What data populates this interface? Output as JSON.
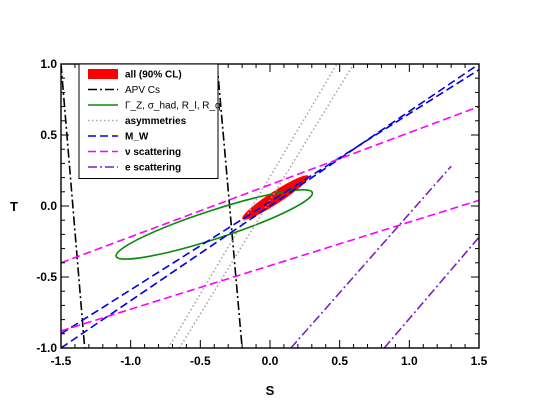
{
  "chart_data": {
    "type": "line",
    "xlabel": "S",
    "ylabel": "T",
    "xlim": [
      -1.5,
      1.5
    ],
    "ylim": [
      -1.0,
      1.0
    ],
    "x_ticks": [
      "-1.5",
      "-1.0",
      "-0.5",
      "0.0",
      "0.5",
      "1.0",
      "1.5"
    ],
    "y_ticks": [
      "-1.0",
      "-0.5",
      "0.0",
      "0.5",
      "1.0"
    ],
    "legend_position": "top-left",
    "legend": [
      {
        "label": "all (90% CL)",
        "color": "#ff0000",
        "style": "fill",
        "bold": true
      },
      {
        "label": "APV Cs",
        "color": "#000000",
        "style": "dashdot",
        "bold": false
      },
      {
        "label": "Γ_Z, σ_had, R_l, R_q",
        "color": "#0a8a0a",
        "style": "solid",
        "bold": false
      },
      {
        "label": "asymmetries",
        "color": "#b0a0a8",
        "style": "dotted",
        "bold": true
      },
      {
        "label": "M_W",
        "color": "#0000e0",
        "style": "dashed",
        "bold": true
      },
      {
        "label": "ν scattering",
        "color": "#ff00ff",
        "style": "dashed",
        "bold": true
      },
      {
        "label": "e scattering",
        "color": "#7a1fc4",
        "style": "dashdot",
        "bold": true
      }
    ],
    "series": [
      {
        "name": "all (90% CL)",
        "shape": "ellipse",
        "center": [
          0.04,
          0.06
        ],
        "semi_axes": [
          0.28,
          0.04
        ],
        "angle_deg": 33
      },
      {
        "name": "APV Cs",
        "bands": [
          [
            [
              -1.5,
              1.0
            ],
            [
              -1.33,
              -1.0
            ]
          ],
          [
            [
              -0.38,
              1.0
            ],
            [
              -0.2,
              -1.0
            ]
          ]
        ]
      },
      {
        "name": "Γ_Z, σ_had, R_l, R_q",
        "shape": "ellipse",
        "center": [
          -0.4,
          -0.13
        ],
        "semi_axes": [
          0.74,
          0.1
        ],
        "angle_deg": 18
      },
      {
        "name": "asymmetries",
        "bands": [
          [
            [
              -0.73,
              -1.0
            ],
            [
              0.48,
              1.0
            ]
          ],
          [
            [
              -0.65,
              -1.0
            ],
            [
              0.6,
              1.0
            ]
          ]
        ]
      },
      {
        "name": "M_W",
        "bands": [
          [
            [
              -1.5,
              -1.0
            ],
            [
              1.5,
              1.0
            ]
          ],
          [
            [
              -1.5,
              -0.9
            ],
            [
              1.5,
              0.96
            ]
          ]
        ]
      },
      {
        "name": "ν scattering",
        "bands": [
          [
            [
              -1.5,
              -0.4
            ],
            [
              1.5,
              0.7
            ]
          ],
          [
            [
              -1.5,
              -0.88
            ],
            [
              1.5,
              0.04
            ]
          ]
        ]
      },
      {
        "name": "e scattering",
        "bands": [
          [
            [
              0.15,
              -1.0
            ],
            [
              1.3,
              0.28
            ]
          ],
          [
            [
              0.82,
              -1.0
            ],
            [
              1.5,
              -0.22
            ]
          ]
        ]
      }
    ]
  }
}
